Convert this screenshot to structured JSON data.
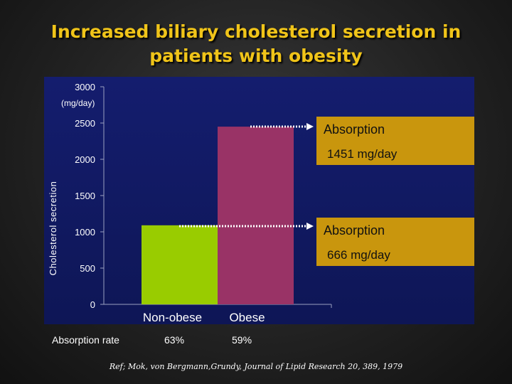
{
  "title": {
    "line1": "Increased biliary cholesterol secretion in",
    "line2": "patients with obesity"
  },
  "chart_data": {
    "type": "bar",
    "categories": [
      "Non-obese",
      "Obese"
    ],
    "values": [
      1090,
      2450
    ],
    "colors": [
      "#99cc00",
      "#993366"
    ],
    "ylabel": "Cholesterol secretion",
    "yunit": "(mg/day)",
    "ylim": [
      0,
      3000
    ],
    "yticks": [
      0,
      500,
      1000,
      1500,
      2000,
      2500,
      3000
    ],
    "grid": false,
    "background": "#121a64",
    "annotations": [
      {
        "title": "Absorption",
        "value": "1451 mg/day",
        "points_to": "Obese"
      },
      {
        "title": "Absorption",
        "value": "666 mg/day",
        "points_to": "Non-obese"
      }
    ]
  },
  "absorption_rate": {
    "label": "Absorption rate",
    "values": [
      "63%",
      "59%"
    ]
  },
  "reference": "Ref; Mok, von Bergmann,Grundy, Journal of Lipid Research 20, 389, 1979",
  "colors": {
    "title": "#f0c419",
    "callout": "#c9960d",
    "arrow": "#ffffff"
  }
}
